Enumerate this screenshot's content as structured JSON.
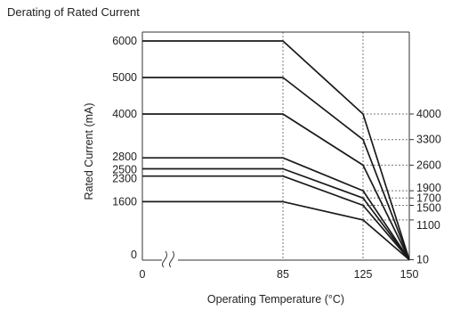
{
  "chart_data": {
    "type": "line",
    "title": "Derating of Rated Current",
    "xlabel": "Operating Temperature (°C)",
    "ylabel": "Rated Current (mA)",
    "x_tick_labels": [
      "0",
      "85",
      "125",
      "150"
    ],
    "y_tick_labels_left": [
      "6000",
      "5000",
      "4000",
      "2800",
      "2500",
      "2300",
      "1600",
      "0"
    ],
    "y_tick_labels_right": [
      "4000",
      "3300",
      "2600",
      "1900",
      "1700",
      "1500",
      "1100",
      "10"
    ],
    "x_break": true,
    "grid": "dashed reference lines at 85 °C, 125 °C and at the 125 °C values",
    "series": [
      {
        "values": [
          [
            0,
            6000
          ],
          [
            85,
            6000
          ],
          [
            125,
            4000
          ],
          [
            150,
            10
          ]
        ]
      },
      {
        "values": [
          [
            0,
            5000
          ],
          [
            85,
            5000
          ],
          [
            125,
            3300
          ],
          [
            150,
            10
          ]
        ]
      },
      {
        "values": [
          [
            0,
            4000
          ],
          [
            85,
            4000
          ],
          [
            125,
            2600
          ],
          [
            150,
            10
          ]
        ]
      },
      {
        "values": [
          [
            0,
            2800
          ],
          [
            85,
            2800
          ],
          [
            125,
            1900
          ],
          [
            150,
            10
          ]
        ]
      },
      {
        "values": [
          [
            0,
            2500
          ],
          [
            85,
            2500
          ],
          [
            125,
            1700
          ],
          [
            150,
            10
          ]
        ]
      },
      {
        "values": [
          [
            0,
            2300
          ],
          [
            85,
            2300
          ],
          [
            125,
            1500
          ],
          [
            150,
            10
          ]
        ]
      },
      {
        "values": [
          [
            0,
            1600
          ],
          [
            85,
            1600
          ],
          [
            125,
            1100
          ],
          [
            150,
            10
          ]
        ]
      }
    ]
  },
  "colors": {
    "line": "#1a1a1a",
    "frame": "#333333",
    "dashed": "#777777"
  }
}
